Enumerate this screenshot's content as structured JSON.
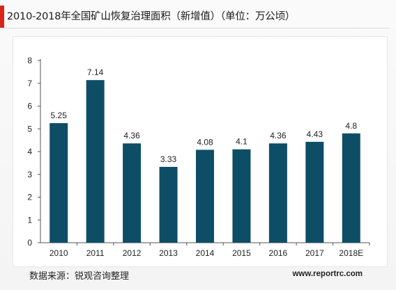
{
  "header": {
    "title": "2010-2018年全国矿山恢复治理面积（新增值）（单位：万公顷）"
  },
  "footer": {
    "source": "数据来源：锐观咨询整理",
    "website": "www.reportrc.com"
  },
  "colors": {
    "bar": "#0e4d66",
    "accent": "#d9261c",
    "axis": "#555555",
    "text": "#222222"
  },
  "chart_data": {
    "type": "bar",
    "title": "2010-2018年全国矿山恢复治理面积（新增值）（单位：万公顷）",
    "categories": [
      "2010",
      "2011",
      "2012",
      "2013",
      "2014",
      "2015",
      "2016",
      "2017",
      "2018E"
    ],
    "values": [
      5.25,
      7.14,
      4.36,
      3.33,
      4.08,
      4.1,
      4.36,
      4.43,
      4.8
    ],
    "value_labels": [
      "5.25",
      "7.14",
      "4.36",
      "3.33",
      "4.08",
      "4.1",
      "4.36",
      "4.43",
      "4.8"
    ],
    "y_ticks": [
      "0",
      "1",
      "2",
      "3",
      "4",
      "5",
      "6",
      "7",
      "8"
    ],
    "ylim": [
      0,
      8
    ],
    "xlabel": "",
    "ylabel": "",
    "grid": false,
    "legend": "none"
  }
}
